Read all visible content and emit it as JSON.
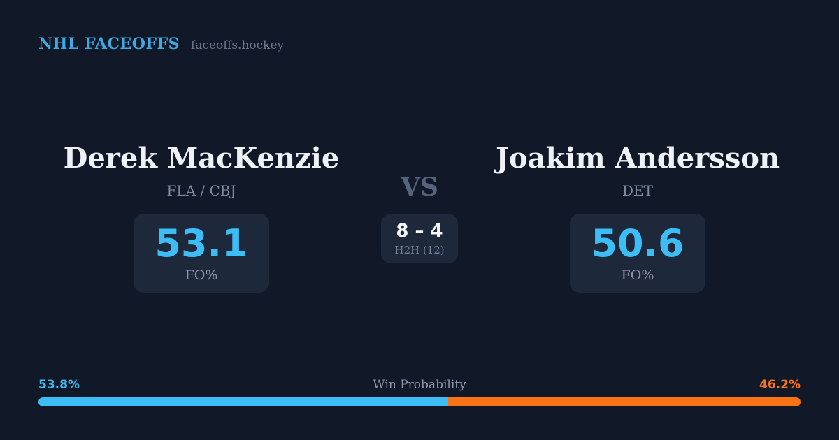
{
  "brand": {
    "title": "NHL FACEOFFS",
    "domain": "faceoffs.hockey"
  },
  "matchup": {
    "vs_label": "VS",
    "h2h": {
      "score": "8 – 4",
      "label": "H2H (12)"
    },
    "players": [
      {
        "name": "Derek MacKenzie",
        "teams": "FLA / CBJ",
        "fo_pct": "53.1",
        "fo_label": "FO%"
      },
      {
        "name": "Joakim Andersson",
        "teams": "DET",
        "fo_pct": "50.6",
        "fo_label": "FO%"
      }
    ]
  },
  "win_probability": {
    "title": "Win Probability",
    "left_pct_label": "53.8%",
    "right_pct_label": "46.2%",
    "left_value": 53.8,
    "right_value": 46.2
  },
  "colors": {
    "background": "#111827",
    "card_background": "#1d293b",
    "accent_blue": "#3dbdf6",
    "accent_orange": "#f97316",
    "logo_blue": "#41a9e2",
    "name_white": "#eef1f6",
    "muted_text": "#7d8aa0"
  }
}
